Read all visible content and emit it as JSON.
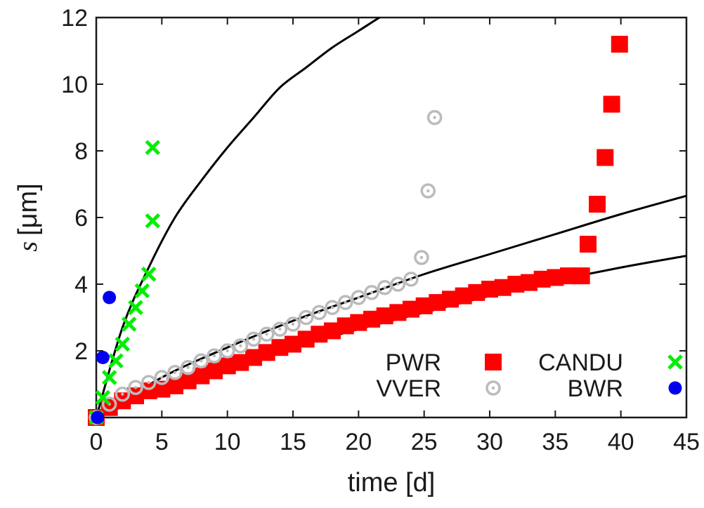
{
  "chart_data": {
    "type": "scatter",
    "xlabel": "time [d]",
    "ylabel_symbol": "s",
    "ylabel_unit": "[μm]",
    "xlim": [
      0,
      45
    ],
    "ylim": [
      0,
      12
    ],
    "xticks": [
      0,
      5,
      10,
      15,
      20,
      25,
      30,
      35,
      40,
      45
    ],
    "yticks": [
      2,
      4,
      6,
      8,
      10,
      12
    ],
    "grid": false,
    "legend_position": "bottom-right",
    "series": [
      {
        "name": "PWR",
        "marker": "square",
        "color": "#ff0000",
        "x": [
          0,
          1,
          2,
          3,
          4,
          5,
          6,
          7,
          8,
          9,
          10,
          11,
          12,
          13,
          14,
          15,
          16,
          17,
          18,
          19,
          20,
          21,
          22,
          23,
          24,
          25,
          26,
          27,
          28,
          29,
          30,
          31,
          32,
          33,
          34,
          35,
          36,
          37,
          37.5,
          38.2,
          38.8,
          39.3,
          39.9
        ],
        "y": [
          0.0,
          0.3,
          0.5,
          0.65,
          0.8,
          0.85,
          0.95,
          1.1,
          1.25,
          1.4,
          1.55,
          1.65,
          1.8,
          1.95,
          2.1,
          2.2,
          2.35,
          2.5,
          2.6,
          2.75,
          2.85,
          2.95,
          3.05,
          3.15,
          3.25,
          3.35,
          3.45,
          3.55,
          3.65,
          3.75,
          3.85,
          3.9,
          4.0,
          4.05,
          4.15,
          4.2,
          4.25,
          4.25,
          5.2,
          6.4,
          7.8,
          9.4,
          11.2
        ]
      },
      {
        "name": "VVER",
        "marker": "ring-dot",
        "color": "#bbbbbb",
        "x": [
          0,
          1,
          2,
          3,
          4,
          5,
          6,
          7,
          8,
          9,
          10,
          11,
          12,
          13,
          14,
          15,
          16,
          17,
          18,
          19,
          20,
          21,
          22,
          23,
          24,
          24.8,
          25.3,
          25.8
        ],
        "y": [
          0.0,
          0.4,
          0.7,
          0.9,
          1.05,
          1.2,
          1.35,
          1.5,
          1.7,
          1.85,
          2.0,
          2.15,
          2.35,
          2.5,
          2.65,
          2.8,
          3.0,
          3.15,
          3.3,
          3.45,
          3.6,
          3.75,
          3.9,
          4.0,
          4.15,
          4.8,
          6.8,
          9.0
        ]
      },
      {
        "name": "CANDU",
        "marker": "x",
        "color": "#00ee00",
        "x": [
          0,
          0.5,
          1.0,
          1.5,
          2.0,
          2.5,
          3.0,
          3.5,
          4.0,
          4.3,
          4.3
        ],
        "y": [
          0.0,
          0.6,
          1.2,
          1.7,
          2.2,
          2.8,
          3.3,
          3.8,
          4.3,
          5.9,
          8.1
        ]
      },
      {
        "name": "BWR",
        "marker": "circle",
        "color": "#0000ee",
        "x": [
          0.1,
          0.5,
          1.0
        ],
        "y": [
          0.0,
          1.8,
          3.6
        ]
      }
    ],
    "fit_curves": [
      {
        "fit_for": "CANDU",
        "color": "#000000",
        "x": [
          0,
          2,
          4,
          6,
          8,
          10,
          12,
          14,
          16,
          18,
          20,
          22,
          23
        ],
        "y": [
          0.0,
          2.7,
          4.5,
          6.0,
          7.1,
          8.1,
          9.0,
          9.9,
          10.5,
          11.1,
          11.6,
          12.1,
          12.3
        ]
      },
      {
        "fit_for": "VVER",
        "color": "#000000",
        "x": [
          0,
          5,
          10,
          15,
          20,
          25,
          30,
          35,
          40,
          45
        ],
        "y": [
          0.0,
          1.2,
          2.1,
          2.9,
          3.6,
          4.3,
          4.9,
          5.5,
          6.1,
          6.65
        ]
      },
      {
        "fit_for": "PWR",
        "color": "#000000",
        "x": [
          0,
          5,
          10,
          15,
          20,
          25,
          30,
          35,
          40,
          45
        ],
        "y": [
          0.0,
          0.8,
          1.5,
          2.1,
          2.65,
          3.15,
          3.65,
          4.1,
          4.5,
          4.85
        ]
      }
    ]
  }
}
